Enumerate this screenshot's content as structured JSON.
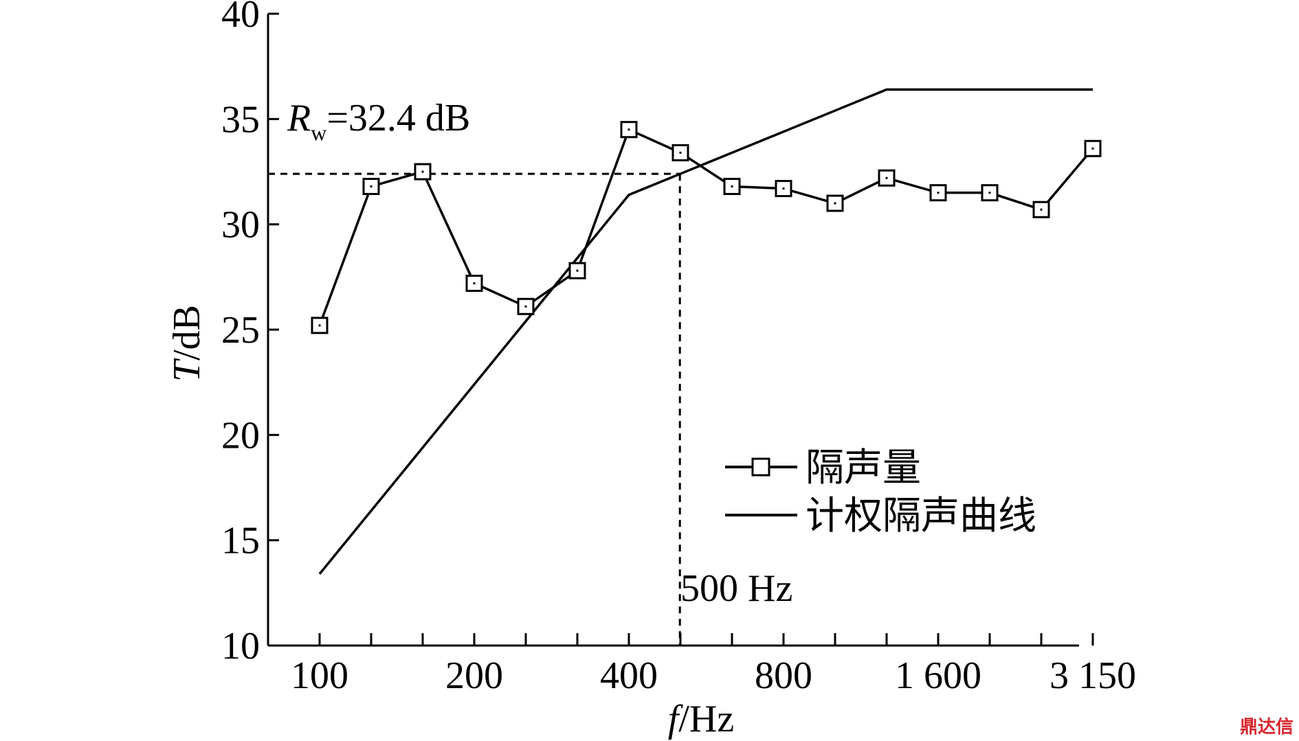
{
  "chart_data": {
    "type": "line",
    "xlabel": "f/Hz",
    "ylabel": "T/dB",
    "xlabel_italic": "f",
    "xlabel_unit": "/Hz",
    "ylabel_italic": "T",
    "ylabel_unit": "/dB",
    "x_scale": "log (1/3-octave bands)",
    "x_tick_labels": [
      "100",
      "200",
      "400",
      "800",
      "1 600",
      "3 150"
    ],
    "x_ticks_hz": [
      100,
      125,
      160,
      200,
      250,
      315,
      400,
      500,
      630,
      800,
      1000,
      1250,
      1600,
      2000,
      2500,
      3150
    ],
    "ylim": [
      10,
      40
    ],
    "y_ticks": [
      10,
      15,
      20,
      25,
      30,
      35,
      40
    ],
    "y_tick_labels": [
      "10",
      "15",
      "20",
      "25",
      "30",
      "35",
      "40"
    ],
    "grid": false,
    "legend_position": "lower right",
    "series": [
      {
        "name": "隔声量",
        "marker": "square",
        "color": "#000000",
        "x": [
          100,
          125,
          160,
          200,
          250,
          315,
          400,
          500,
          630,
          800,
          1000,
          1250,
          1600,
          2000,
          2500,
          3150
        ],
        "values": [
          25.2,
          31.8,
          32.5,
          27.2,
          26.1,
          27.8,
          34.5,
          33.4,
          31.8,
          31.7,
          31.0,
          32.2,
          31.5,
          31.5,
          30.7,
          33.6
        ]
      },
      {
        "name": "计权隔声曲线",
        "marker": "none",
        "color": "#000000",
        "x": [
          100,
          125,
          160,
          200,
          250,
          315,
          400,
          500,
          630,
          800,
          1000,
          1250,
          1600,
          2000,
          2500,
          3150
        ],
        "values": [
          13.4,
          16.4,
          19.4,
          22.4,
          25.4,
          28.4,
          31.4,
          32.4,
          33.4,
          34.4,
          35.4,
          36.4,
          36.4,
          36.4,
          36.4,
          36.4
        ]
      }
    ],
    "annotations": {
      "rw_symbol": "R",
      "rw_subscript": "w",
      "rw_text": "=32.4 dB",
      "rw_value": 32.4,
      "marker_text": "500 Hz",
      "marker_freq": 500
    }
  },
  "watermark": "鼎达信"
}
